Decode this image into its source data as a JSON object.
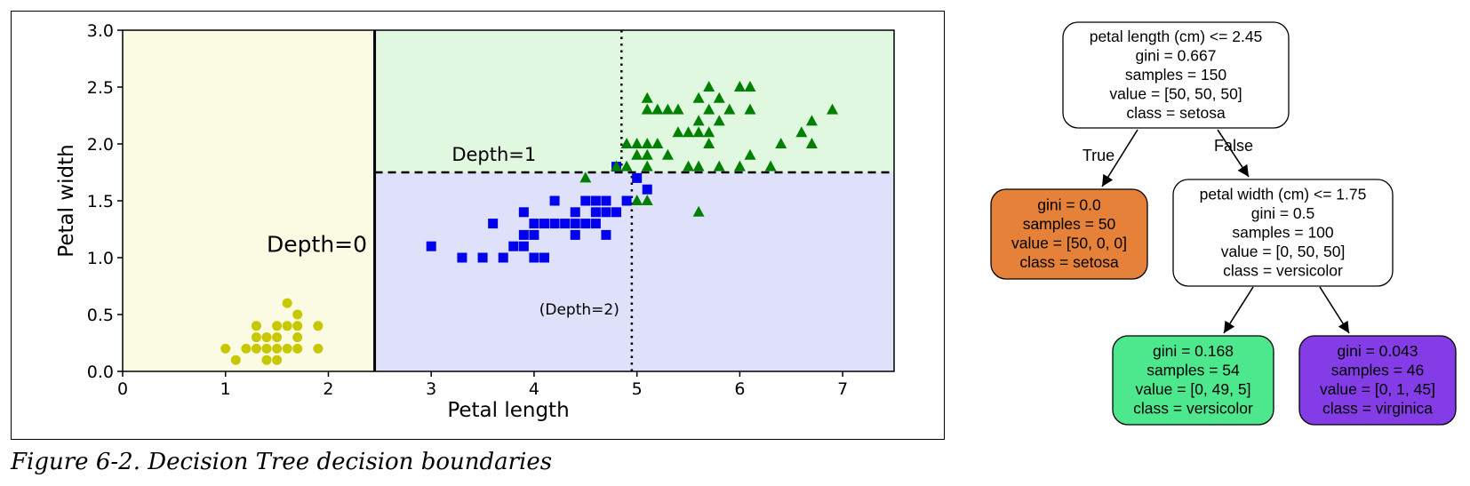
{
  "chart_data": {
    "type": "scatter",
    "xlabel": "Petal length",
    "ylabel": "Petal width",
    "xlim": [
      0,
      7.5
    ],
    "ylim": [
      0.0,
      3.0
    ],
    "xticks": [
      "0",
      "1",
      "2",
      "3",
      "4",
      "5",
      "6",
      "7"
    ],
    "yticks": [
      "0.0",
      "0.5",
      "1.0",
      "1.5",
      "2.0",
      "2.5",
      "3.0"
    ],
    "regions": [
      {
        "x_range": [
          0,
          2.45
        ],
        "y_range": [
          0,
          3.0
        ],
        "color": "#fbfbe3"
      },
      {
        "x_range": [
          2.45,
          7.5
        ],
        "y_range": [
          1.75,
          3.0
        ],
        "color": "#dff8df"
      },
      {
        "x_range": [
          2.45,
          7.5
        ],
        "y_range": [
          0,
          1.75
        ],
        "color": "#dfe0fa"
      }
    ],
    "boundaries": [
      {
        "orientation": "vertical",
        "value": 2.45,
        "style": "solid"
      },
      {
        "orientation": "horizontal",
        "value": 1.75,
        "from": 2.45,
        "to": 7.5,
        "style": "dashed"
      },
      {
        "orientation": "vertical",
        "value": 4.95,
        "from": 0,
        "to": 1.75,
        "style": "dotted"
      },
      {
        "orientation": "vertical",
        "value": 4.85,
        "from": 1.75,
        "to": 3.0,
        "style": "dotted"
      }
    ],
    "annotations": [
      {
        "text": "Depth=0",
        "x": 1.4,
        "y": 1.05
      },
      {
        "text": "Depth=1",
        "x": 3.2,
        "y": 1.85
      },
      {
        "text": "(Depth=2)",
        "x": 4.05,
        "y": 0.5
      }
    ],
    "series": [
      {
        "marker": "circle",
        "color": "#c8c800",
        "points": [
          [
            1.0,
            0.2
          ],
          [
            1.1,
            0.1
          ],
          [
            1.2,
            0.2
          ],
          [
            1.3,
            0.2
          ],
          [
            1.3,
            0.3
          ],
          [
            1.3,
            0.4
          ],
          [
            1.4,
            0.1
          ],
          [
            1.4,
            0.2
          ],
          [
            1.4,
            0.3
          ],
          [
            1.5,
            0.1
          ],
          [
            1.5,
            0.2
          ],
          [
            1.5,
            0.3
          ],
          [
            1.5,
            0.4
          ],
          [
            1.6,
            0.2
          ],
          [
            1.6,
            0.4
          ],
          [
            1.6,
            0.6
          ],
          [
            1.7,
            0.2
          ],
          [
            1.7,
            0.3
          ],
          [
            1.7,
            0.4
          ],
          [
            1.7,
            0.5
          ],
          [
            1.9,
            0.2
          ],
          [
            1.9,
            0.4
          ]
        ]
      },
      {
        "marker": "square",
        "color": "#0000ee",
        "points": [
          [
            3.0,
            1.1
          ],
          [
            3.3,
            1.0
          ],
          [
            3.5,
            1.0
          ],
          [
            3.6,
            1.3
          ],
          [
            3.7,
            1.0
          ],
          [
            3.8,
            1.1
          ],
          [
            3.9,
            1.1
          ],
          [
            3.9,
            1.2
          ],
          [
            3.9,
            1.4
          ],
          [
            4.0,
            1.0
          ],
          [
            4.0,
            1.2
          ],
          [
            4.0,
            1.3
          ],
          [
            4.1,
            1.0
          ],
          [
            4.1,
            1.3
          ],
          [
            4.2,
            1.3
          ],
          [
            4.2,
            1.5
          ],
          [
            4.3,
            1.3
          ],
          [
            4.4,
            1.2
          ],
          [
            4.4,
            1.3
          ],
          [
            4.4,
            1.4
          ],
          [
            4.5,
            1.3
          ],
          [
            4.5,
            1.5
          ],
          [
            4.6,
            1.3
          ],
          [
            4.6,
            1.4
          ],
          [
            4.6,
            1.5
          ],
          [
            4.7,
            1.2
          ],
          [
            4.7,
            1.4
          ],
          [
            4.7,
            1.5
          ],
          [
            4.8,
            1.4
          ],
          [
            4.8,
            1.8
          ],
          [
            4.9,
            1.5
          ],
          [
            5.0,
            1.7
          ],
          [
            5.1,
            1.6
          ]
        ]
      },
      {
        "marker": "triangle",
        "color": "#008000",
        "points": [
          [
            4.5,
            1.7
          ],
          [
            4.8,
            1.8
          ],
          [
            4.9,
            1.8
          ],
          [
            4.9,
            2.0
          ],
          [
            5.0,
            1.5
          ],
          [
            5.0,
            1.9
          ],
          [
            5.0,
            2.0
          ],
          [
            5.1,
            1.5
          ],
          [
            5.1,
            1.8
          ],
          [
            5.1,
            1.9
          ],
          [
            5.1,
            2.0
          ],
          [
            5.1,
            2.3
          ],
          [
            5.1,
            2.4
          ],
          [
            5.2,
            2.3
          ],
          [
            5.3,
            2.3
          ],
          [
            5.4,
            2.1
          ],
          [
            5.4,
            2.3
          ],
          [
            5.5,
            1.8
          ],
          [
            5.5,
            2.1
          ],
          [
            5.6,
            1.4
          ],
          [
            5.6,
            1.8
          ],
          [
            5.6,
            2.1
          ],
          [
            5.6,
            2.2
          ],
          [
            5.6,
            2.4
          ],
          [
            5.7,
            2.1
          ],
          [
            5.7,
            2.3
          ],
          [
            5.7,
            2.5
          ],
          [
            5.8,
            1.8
          ],
          [
            5.8,
            2.2
          ],
          [
            5.8,
            2.4
          ],
          [
            6.0,
            1.8
          ],
          [
            6.0,
            2.5
          ],
          [
            6.1,
            1.9
          ],
          [
            6.1,
            2.3
          ],
          [
            6.1,
            2.5
          ],
          [
            6.3,
            1.8
          ],
          [
            6.4,
            2.0
          ],
          [
            6.6,
            2.1
          ],
          [
            6.7,
            2.0
          ],
          [
            6.7,
            2.2
          ],
          [
            6.9,
            2.3
          ],
          [
            5.2,
            2.0
          ],
          [
            5.3,
            1.9
          ],
          [
            5.7,
            2.0
          ],
          [
            5.9,
            2.3
          ]
        ]
      }
    ]
  },
  "tree": {
    "nodes": [
      {
        "id": "root",
        "fill": "#ffffff",
        "lines": [
          "petal length (cm) <= 2.45",
          "gini = 0.667",
          "samples = 150",
          "value = [50, 50, 50]",
          "class = setosa"
        ]
      },
      {
        "id": "left",
        "fill": "#e58139",
        "lines": [
          "gini = 0.0",
          "samples = 50",
          "value = [50, 0, 0]",
          "class = setosa"
        ]
      },
      {
        "id": "right",
        "fill": "#ffffff",
        "lines": [
          "petal width (cm) <= 1.75",
          "gini = 0.5",
          "samples = 100",
          "value = [0, 50, 50]",
          "class = versicolor"
        ]
      },
      {
        "id": "rl",
        "fill": "#4de88e",
        "lines": [
          "gini = 0.168",
          "samples = 54",
          "value = [0, 49, 5]",
          "class = versicolor"
        ]
      },
      {
        "id": "rr",
        "fill": "#843de6",
        "lines": [
          "gini = 0.043",
          "samples = 46",
          "value = [0, 1, 45]",
          "class = virginica"
        ]
      }
    ],
    "edges": [
      {
        "from": "root",
        "to": "left",
        "label": "True"
      },
      {
        "from": "root",
        "to": "right",
        "label": "False"
      },
      {
        "from": "right",
        "to": "rl",
        "label": ""
      },
      {
        "from": "right",
        "to": "rr",
        "label": ""
      }
    ]
  },
  "caption": "Figure 6-2. Decision Tree decision boundaries"
}
